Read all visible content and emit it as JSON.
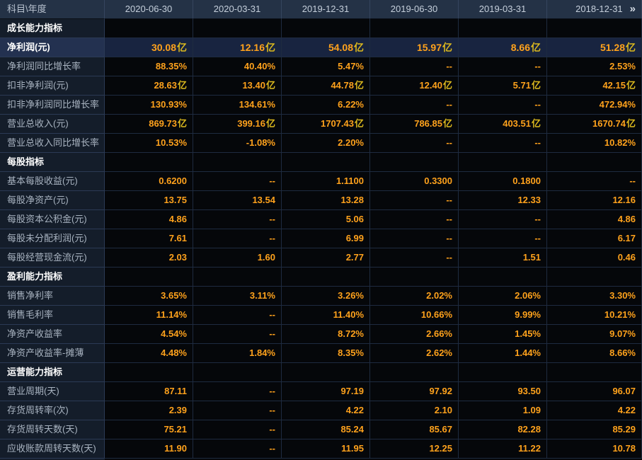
{
  "table": {
    "corner_label": "科目\\年度",
    "columns": [
      "2020-06-30",
      "2020-03-31",
      "2019-12-31",
      "2019-06-30",
      "2019-03-31",
      "2018-12-31"
    ],
    "more_icon": "»",
    "rows": [
      {
        "type": "section",
        "label": "成长能力指标"
      },
      {
        "type": "metric",
        "highlight": true,
        "label": "净利润(元)",
        "values": [
          "30.08亿",
          "12.16亿",
          "54.08亿",
          "15.97亿",
          "8.66亿",
          "51.28亿"
        ]
      },
      {
        "type": "metric",
        "label": "净利润同比增长率",
        "values": [
          "88.35%",
          "40.40%",
          "5.47%",
          "--",
          "--",
          "2.53%"
        ]
      },
      {
        "type": "metric",
        "label": "扣非净利润(元)",
        "values": [
          "28.63亿",
          "13.40亿",
          "44.78亿",
          "12.40亿",
          "5.71亿",
          "42.15亿"
        ]
      },
      {
        "type": "metric",
        "label": "扣非净利润同比增长率",
        "values": [
          "130.93%",
          "134.61%",
          "6.22%",
          "--",
          "--",
          "472.94%"
        ]
      },
      {
        "type": "metric",
        "label": "营业总收入(元)",
        "values": [
          "869.73亿",
          "399.16亿",
          "1707.43亿",
          "786.85亿",
          "403.51亿",
          "1670.74亿"
        ]
      },
      {
        "type": "metric",
        "label": "营业总收入同比增长率",
        "values": [
          "10.53%",
          "-1.08%",
          "2.20%",
          "--",
          "--",
          "10.82%"
        ]
      },
      {
        "type": "section",
        "label": "每股指标"
      },
      {
        "type": "metric",
        "label": "基本每股收益(元)",
        "values": [
          "0.6200",
          "--",
          "1.1100",
          "0.3300",
          "0.1800",
          "--"
        ]
      },
      {
        "type": "metric",
        "label": "每股净资产(元)",
        "values": [
          "13.75",
          "13.54",
          "13.28",
          "--",
          "12.33",
          "12.16"
        ]
      },
      {
        "type": "metric",
        "label": "每股资本公积金(元)",
        "values": [
          "4.86",
          "--",
          "5.06",
          "--",
          "--",
          "4.86"
        ]
      },
      {
        "type": "metric",
        "label": "每股未分配利润(元)",
        "values": [
          "7.61",
          "--",
          "6.99",
          "--",
          "--",
          "6.17"
        ]
      },
      {
        "type": "metric",
        "label": "每股经营现金流(元)",
        "values": [
          "2.03",
          "1.60",
          "2.77",
          "--",
          "1.51",
          "0.46"
        ]
      },
      {
        "type": "section",
        "label": "盈利能力指标"
      },
      {
        "type": "metric",
        "label": "销售净利率",
        "values": [
          "3.65%",
          "3.11%",
          "3.26%",
          "2.02%",
          "2.06%",
          "3.30%"
        ]
      },
      {
        "type": "metric",
        "label": "销售毛利率",
        "values": [
          "11.14%",
          "--",
          "11.40%",
          "10.66%",
          "9.99%",
          "10.21%"
        ]
      },
      {
        "type": "metric",
        "label": "净资产收益率",
        "values": [
          "4.54%",
          "--",
          "8.72%",
          "2.66%",
          "1.45%",
          "9.07%"
        ]
      },
      {
        "type": "metric",
        "label": "净资产收益率-摊薄",
        "values": [
          "4.48%",
          "1.84%",
          "8.35%",
          "2.62%",
          "1.44%",
          "8.66%"
        ]
      },
      {
        "type": "section",
        "label": "运营能力指标"
      },
      {
        "type": "metric",
        "label": "营业周期(天)",
        "values": [
          "87.11",
          "--",
          "97.19",
          "97.92",
          "93.50",
          "96.07"
        ]
      },
      {
        "type": "metric",
        "label": "存货周转率(次)",
        "values": [
          "2.39",
          "--",
          "4.22",
          "2.10",
          "1.09",
          "4.22"
        ]
      },
      {
        "type": "metric",
        "label": "存货周转天数(天)",
        "values": [
          "75.21",
          "--",
          "85.24",
          "85.67",
          "82.28",
          "85.29"
        ]
      },
      {
        "type": "metric",
        "label": "应收账款周转天数(天)",
        "values": [
          "11.90",
          "--",
          "11.95",
          "12.25",
          "11.22",
          "10.78"
        ]
      }
    ],
    "colors": {
      "header_bg": "#243246",
      "label_bg": "#141d2a",
      "cell_bg": "#05070a",
      "highlight_label_bg": "#233150",
      "highlight_cell_bg": "#182440",
      "value_orange": "#ffa21c",
      "unit_gold": "#dcb91e",
      "grid_line": "#1e2b40"
    }
  }
}
